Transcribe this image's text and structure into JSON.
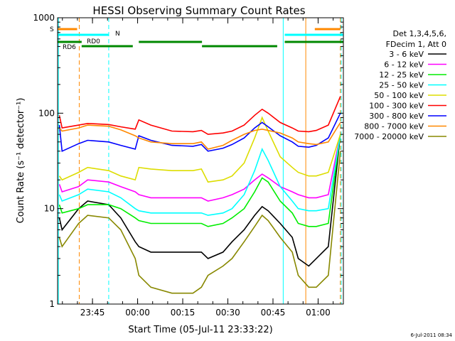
{
  "chart_data": {
    "type": "line",
    "title": "HESSI Observing Summary Count Rates",
    "xlabel": "Start Time (05-Jul-11 23:33:22)",
    "ylabel": "Count Rate (s⁻¹ detector⁻¹)",
    "yscale": "log",
    "ylim": [
      1,
      1000
    ],
    "xlim_minutes_after_start": [
      0,
      95
    ],
    "grid": false,
    "legend_placement": "right",
    "x_tick_labels": [
      "23:45",
      "00:00",
      "00:15",
      "00:30",
      "00:45",
      "01:00"
    ],
    "x_tick_minutes_after_start": [
      11.6,
      26.6,
      41.6,
      56.6,
      71.6,
      86.6
    ],
    "y_tick_labels": [
      "1",
      "10",
      "100",
      "1000"
    ],
    "y_tick_values": [
      1,
      10,
      100,
      1000
    ],
    "legend_header": [
      "Det 1,3,4,5,6,",
      "FDecim 1, Att 0"
    ],
    "timestamp": "6-Jul-2011 08:34",
    "x": [
      0.6,
      1.5,
      7,
      10,
      17,
      21,
      25.8,
      27,
      31,
      38,
      45,
      47.8,
      50,
      55,
      58,
      62,
      65.5,
      68,
      70,
      74,
      78,
      80,
      83.5,
      86,
      90,
      94
    ],
    "series": [
      {
        "name": "3 - 6 keV",
        "color": "#000000",
        "values": [
          8,
          6,
          10,
          12,
          11,
          8,
          4.5,
          4,
          3.5,
          3.5,
          3.5,
          3.5,
          3,
          3.5,
          4.5,
          6,
          8.5,
          10.5,
          9.5,
          7,
          5,
          3,
          2.5,
          3,
          4,
          60
        ]
      },
      {
        "name": "6 - 12 keV",
        "color": "#ff00ff",
        "values": [
          18,
          15,
          17,
          20,
          19,
          17,
          15,
          14,
          13,
          13,
          13,
          13,
          12,
          13,
          14,
          16,
          20,
          23,
          21,
          17,
          15,
          14,
          13,
          13,
          14,
          60
        ]
      },
      {
        "name": "12 - 25 keV",
        "color": "#00ee00",
        "values": [
          11,
          9,
          10,
          11,
          11,
          10,
          8,
          7.5,
          7,
          7,
          7,
          7,
          6.5,
          7,
          8,
          10,
          15,
          21,
          19,
          12,
          9,
          7,
          6.5,
          6.5,
          7,
          60
        ]
      },
      {
        "name": "25 - 50 keV",
        "color": "#00ffff",
        "values": [
          14,
          12,
          14,
          16,
          15,
          13,
          10,
          9.5,
          9,
          9,
          9,
          9,
          8.5,
          9,
          10,
          14,
          25,
          42,
          32,
          17,
          12,
          10,
          9.5,
          9.5,
          10,
          60
        ]
      },
      {
        "name": "50 - 100 keV",
        "color": "#dddd00",
        "values": [
          22,
          20,
          24,
          27,
          25,
          22,
          20,
          27,
          26,
          25,
          25,
          26,
          19,
          20,
          22,
          30,
          55,
          90,
          65,
          35,
          27,
          24,
          22,
          22,
          24,
          60
        ]
      },
      {
        "name": "100 - 300 keV",
        "color": "#ff0000",
        "values": [
          95,
          70,
          75,
          78,
          76,
          72,
          68,
          85,
          75,
          65,
          64,
          66,
          60,
          62,
          65,
          75,
          95,
          110,
          100,
          80,
          70,
          65,
          64,
          66,
          75,
          150
        ]
      },
      {
        "name": "300 - 800 keV",
        "color": "#0000ff",
        "values": [
          75,
          40,
          48,
          52,
          50,
          46,
          42,
          58,
          52,
          46,
          45,
          47,
          40,
          43,
          47,
          55,
          70,
          80,
          72,
          58,
          50,
          45,
          44,
          46,
          55,
          100
        ]
      },
      {
        "name": "800 - 7000 keV",
        "color": "#ff8800",
        "values": [
          70,
          65,
          70,
          75,
          73,
          67,
          58,
          55,
          50,
          48,
          48,
          50,
          42,
          46,
          52,
          60,
          66,
          68,
          66,
          62,
          55,
          50,
          48,
          47,
          50,
          80
        ]
      },
      {
        "name": "7000 - 20000 keV",
        "color": "#888800",
        "values": [
          5,
          4,
          7,
          8.5,
          8,
          6,
          3,
          2,
          1.5,
          1.3,
          1.3,
          1.5,
          2,
          2.5,
          3,
          4.5,
          6.5,
          8.5,
          7.5,
          5,
          3.5,
          2,
          1.5,
          1.5,
          2,
          40
        ]
      }
    ],
    "status_bars": [
      {
        "label": "S",
        "color": "#ff8800",
        "segments": [
          [
            0,
            6.5
          ],
          [
            85.5,
            94
          ]
        ]
      },
      {
        "label": "N",
        "color": "#00ffff",
        "segments": [
          [
            0,
            17
          ],
          [
            75.5,
            95
          ]
        ]
      },
      {
        "label": "RD0",
        "color": "#008800",
        "segments": [
          [
            0,
            8
          ],
          [
            27,
            48
          ],
          [
            75.5,
            95
          ]
        ]
      },
      {
        "label": "RD6",
        "color": "#008800",
        "segments": [
          [
            8,
            25
          ],
          [
            48,
            73
          ]
        ]
      }
    ],
    "vertical_markers": [
      {
        "color": "#00ffff",
        "style": "solid",
        "minute": 0.3
      },
      {
        "color": "#ff8800",
        "style": "dashed",
        "minute": 7.2
      },
      {
        "color": "#00ffff",
        "style": "dashed",
        "minute": 17
      },
      {
        "color": "#00ffff",
        "style": "solid",
        "minute": 75
      },
      {
        "color": "#ff8800",
        "style": "solid",
        "minute": 82.5
      },
      {
        "color": "#ff8800",
        "style": "dashed",
        "minute": 94
      },
      {
        "color": "#00ffff",
        "style": "dashed",
        "minute": 94.3
      }
    ]
  }
}
